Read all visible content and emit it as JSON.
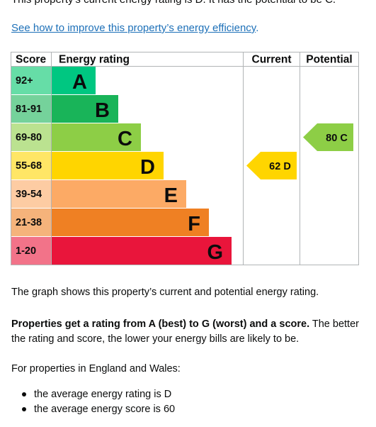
{
  "top_text": "This property's current energy rating is D. It has the potential to be C.",
  "improve_link": {
    "text": "See how to improve this property’s energy efficiency",
    "suffix": "."
  },
  "chart_data": {
    "type": "table",
    "headers": {
      "score": "Score",
      "rating": "Energy rating",
      "current": "Current",
      "potential": "Potential"
    },
    "bands": [
      {
        "letter": "A",
        "range": "92+",
        "color": "#00c781",
        "range_bg": "#66dda7"
      },
      {
        "letter": "B",
        "range": "81-91",
        "color": "#19b459",
        "range_bg": "#75d29b"
      },
      {
        "letter": "C",
        "range": "69-80",
        "color": "#8dce46",
        "range_bg": "#bbe290"
      },
      {
        "letter": "D",
        "range": "55-68",
        "color": "#ffd500",
        "range_bg": "#ffe666"
      },
      {
        "letter": "E",
        "range": "39-54",
        "color": "#fcaa65",
        "range_bg": "#fdcca3"
      },
      {
        "letter": "F",
        "range": "21-38",
        "color": "#ef8023",
        "range_bg": "#f5b37b"
      },
      {
        "letter": "G",
        "range": "1-20",
        "color": "#e9153b",
        "range_bg": "#f27389"
      }
    ],
    "current": {
      "score": 62,
      "rating": "D",
      "label": "62  D"
    },
    "potential": {
      "score": 80,
      "rating": "C",
      "label": "80  C"
    }
  },
  "paragraphs": {
    "graph_text": "The graph shows this property’s current and potential energy rating.",
    "bold_text": "Properties get a rating from A (best) to G (worst) and a score.",
    "rest_text": " The better the rating and score, the lower your energy bills are likely to be.",
    "england_wales": "For properties in England and Wales:"
  },
  "bullets": [
    "the average energy rating is D",
    "the average energy score is 60"
  ]
}
